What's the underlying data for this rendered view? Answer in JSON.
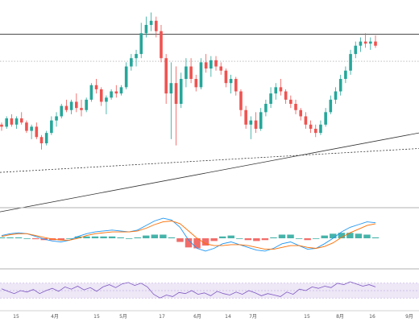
{
  "chart_data": [
    {
      "panel": "price",
      "type": "candlestick",
      "title": "",
      "ylim": [
        0,
        100
      ],
      "horizontal_levels": [
        {
          "name": "resistance",
          "y": 83.5,
          "style": "solid"
        },
        {
          "name": "upper-dotted",
          "y": 70.5,
          "style": "dotted"
        }
      ],
      "trendlines": [
        {
          "name": "rising-solid-trend",
          "y_start": -2,
          "y_end": 36,
          "style": "solid"
        },
        {
          "name": "rising-dotted-trend",
          "y_start": 17,
          "y_end": 28.5,
          "style": "dashed"
        }
      ],
      "candles": [
        {
          "o": 40,
          "h": 41,
          "l": 37,
          "c": 39
        },
        {
          "o": 39,
          "h": 44,
          "l": 38,
          "c": 43
        },
        {
          "o": 43,
          "h": 45,
          "l": 39,
          "c": 40
        },
        {
          "o": 40,
          "h": 44,
          "l": 38,
          "c": 43
        },
        {
          "o": 43,
          "h": 46,
          "l": 40,
          "c": 41
        },
        {
          "o": 41,
          "h": 42,
          "l": 36,
          "c": 37
        },
        {
          "o": 37,
          "h": 40,
          "l": 33,
          "c": 39
        },
        {
          "o": 39,
          "h": 41,
          "l": 33,
          "c": 34
        },
        {
          "o": 34,
          "h": 35,
          "l": 28,
          "c": 31
        },
        {
          "o": 31,
          "h": 37,
          "l": 30,
          "c": 36
        },
        {
          "o": 36,
          "h": 44,
          "l": 35,
          "c": 42
        },
        {
          "o": 42,
          "h": 46,
          "l": 39,
          "c": 44
        },
        {
          "o": 44,
          "h": 50,
          "l": 43,
          "c": 49
        },
        {
          "o": 49,
          "h": 52,
          "l": 46,
          "c": 47
        },
        {
          "o": 47,
          "h": 52,
          "l": 45,
          "c": 51
        },
        {
          "o": 51,
          "h": 55,
          "l": 46,
          "c": 48
        },
        {
          "o": 48,
          "h": 52,
          "l": 44,
          "c": 47
        },
        {
          "o": 47,
          "h": 53,
          "l": 46,
          "c": 52
        },
        {
          "o": 52,
          "h": 60,
          "l": 51,
          "c": 59
        },
        {
          "o": 59,
          "h": 62,
          "l": 55,
          "c": 57
        },
        {
          "o": 57,
          "h": 58,
          "l": 49,
          "c": 51
        },
        {
          "o": 51,
          "h": 54,
          "l": 45,
          "c": 53
        },
        {
          "o": 53,
          "h": 57,
          "l": 52,
          "c": 56
        },
        {
          "o": 56,
          "h": 59,
          "l": 53,
          "c": 55
        },
        {
          "o": 55,
          "h": 59,
          "l": 54,
          "c": 58
        },
        {
          "o": 58,
          "h": 70,
          "l": 57,
          "c": 68
        },
        {
          "o": 68,
          "h": 74,
          "l": 66,
          "c": 72
        },
        {
          "o": 72,
          "h": 76,
          "l": 68,
          "c": 74
        },
        {
          "o": 74,
          "h": 89,
          "l": 72,
          "c": 84
        },
        {
          "o": 84,
          "h": 92,
          "l": 82,
          "c": 88
        },
        {
          "o": 88,
          "h": 94,
          "l": 85,
          "c": 90
        },
        {
          "o": 90,
          "h": 92,
          "l": 82,
          "c": 85
        },
        {
          "o": 85,
          "h": 88,
          "l": 70,
          "c": 72
        },
        {
          "o": 72,
          "h": 74,
          "l": 50,
          "c": 55
        },
        {
          "o": 55,
          "h": 70,
          "l": 33,
          "c": 60
        },
        {
          "o": 60,
          "h": 68,
          "l": 30,
          "c": 50
        },
        {
          "o": 50,
          "h": 65,
          "l": 48,
          "c": 62
        },
        {
          "o": 62,
          "h": 72,
          "l": 58,
          "c": 68
        },
        {
          "o": 68,
          "h": 72,
          "l": 60,
          "c": 62
        },
        {
          "o": 62,
          "h": 64,
          "l": 56,
          "c": 58
        },
        {
          "o": 58,
          "h": 72,
          "l": 57,
          "c": 70
        },
        {
          "o": 70,
          "h": 74,
          "l": 65,
          "c": 67
        },
        {
          "o": 67,
          "h": 73,
          "l": 63,
          "c": 71
        },
        {
          "o": 71,
          "h": 73,
          "l": 66,
          "c": 68
        },
        {
          "o": 68,
          "h": 70,
          "l": 64,
          "c": 66
        },
        {
          "o": 66,
          "h": 67,
          "l": 58,
          "c": 60
        },
        {
          "o": 60,
          "h": 64,
          "l": 55,
          "c": 62
        },
        {
          "o": 62,
          "h": 63,
          "l": 54,
          "c": 56
        },
        {
          "o": 56,
          "h": 57,
          "l": 44,
          "c": 47
        },
        {
          "o": 47,
          "h": 49,
          "l": 38,
          "c": 40
        },
        {
          "o": 40,
          "h": 44,
          "l": 33,
          "c": 42
        },
        {
          "o": 42,
          "h": 46,
          "l": 36,
          "c": 38
        },
        {
          "o": 38,
          "h": 48,
          "l": 37,
          "c": 46
        },
        {
          "o": 46,
          "h": 52,
          "l": 44,
          "c": 50
        },
        {
          "o": 50,
          "h": 58,
          "l": 48,
          "c": 55
        },
        {
          "o": 55,
          "h": 60,
          "l": 52,
          "c": 58
        },
        {
          "o": 58,
          "h": 62,
          "l": 54,
          "c": 56
        },
        {
          "o": 56,
          "h": 57,
          "l": 50,
          "c": 52
        },
        {
          "o": 52,
          "h": 54,
          "l": 48,
          "c": 50
        },
        {
          "o": 50,
          "h": 52,
          "l": 45,
          "c": 47
        },
        {
          "o": 47,
          "h": 48,
          "l": 42,
          "c": 44
        },
        {
          "o": 44,
          "h": 46,
          "l": 38,
          "c": 40
        },
        {
          "o": 40,
          "h": 42,
          "l": 36,
          "c": 38
        },
        {
          "o": 38,
          "h": 40,
          "l": 34,
          "c": 36
        },
        {
          "o": 36,
          "h": 42,
          "l": 35,
          "c": 40
        },
        {
          "o": 40,
          "h": 48,
          "l": 39,
          "c": 46
        },
        {
          "o": 46,
          "h": 54,
          "l": 45,
          "c": 52
        },
        {
          "o": 52,
          "h": 58,
          "l": 50,
          "c": 56
        },
        {
          "o": 56,
          "h": 64,
          "l": 54,
          "c": 62
        },
        {
          "o": 62,
          "h": 68,
          "l": 60,
          "c": 66
        },
        {
          "o": 66,
          "h": 76,
          "l": 64,
          "c": 74
        },
        {
          "o": 74,
          "h": 80,
          "l": 72,
          "c": 78
        },
        {
          "o": 78,
          "h": 82,
          "l": 75,
          "c": 80
        },
        {
          "o": 80,
          "h": 84,
          "l": 77,
          "c": 79
        },
        {
          "o": 79,
          "h": 82,
          "l": 76,
          "c": 80
        },
        {
          "o": 80,
          "h": 83,
          "l": 77,
          "c": 78
        }
      ]
    },
    {
      "panel": "macd",
      "type": "histogram+line",
      "ylim": [
        -3,
        3
      ],
      "series": [
        {
          "role": "macd-line",
          "values": [
            0.3,
            0.5,
            0.6,
            0.5,
            0.2,
            -0.1,
            -0.3,
            -0.4,
            -0.2,
            0.2,
            0.5,
            0.7,
            0.8,
            0.9,
            0.8,
            0.7,
            0.9,
            1.4,
            1.9,
            2.2,
            2.0,
            1.2,
            -0.2,
            -1.1,
            -1.4,
            -1.1,
            -0.6,
            -0.4,
            -0.7,
            -1.0,
            -1.3,
            -1.4,
            -1.1,
            -0.6,
            -0.4,
            -0.8,
            -1.2,
            -1.1,
            -0.6,
            0.0,
            0.7,
            1.2,
            1.5,
            1.8,
            1.7
          ]
        },
        {
          "role": "signal-line",
          "values": [
            0.2,
            0.4,
            0.5,
            0.5,
            0.3,
            0.1,
            -0.1,
            -0.2,
            -0.2,
            0.0,
            0.3,
            0.5,
            0.6,
            0.7,
            0.7,
            0.7,
            0.8,
            1.1,
            1.5,
            1.8,
            1.9,
            1.6,
            0.8,
            0.0,
            -0.6,
            -0.8,
            -0.8,
            -0.7,
            -0.7,
            -0.8,
            -1.0,
            -1.2,
            -1.2,
            -1.0,
            -0.8,
            -0.8,
            -1.0,
            -1.1,
            -0.9,
            -0.5,
            0.1,
            0.6,
            1.0,
            1.4,
            1.6
          ]
        }
      ],
      "histogram": [
        0.1,
        0.1,
        0.1,
        0.0,
        -0.1,
        -0.2,
        -0.2,
        -0.2,
        0.0,
        0.2,
        0.2,
        0.2,
        0.2,
        0.2,
        0.1,
        0.0,
        0.1,
        0.3,
        0.4,
        0.4,
        0.1,
        -0.4,
        -1.0,
        -1.1,
        -0.8,
        -0.3,
        0.2,
        0.3,
        0.0,
        -0.2,
        -0.3,
        -0.2,
        0.1,
        0.4,
        0.4,
        0.0,
        -0.2,
        0.0,
        0.3,
        0.5,
        0.6,
        0.6,
        0.5,
        0.4,
        0.1
      ]
    },
    {
      "panel": "rsi",
      "type": "line",
      "ylim": [
        0,
        100
      ],
      "band": [
        30,
        70
      ],
      "values": [
        55,
        48,
        42,
        50,
        46,
        53,
        42,
        50,
        56,
        48,
        60,
        54,
        62,
        52,
        58,
        48,
        60,
        66,
        58,
        68,
        72,
        64,
        70,
        60,
        40,
        30,
        38,
        34,
        45,
        42,
        50,
        40,
        44,
        36,
        48,
        42,
        38,
        46,
        40,
        50,
        44,
        36,
        42,
        38,
        34,
        46,
        40,
        54,
        50,
        60,
        56,
        62,
        58,
        70,
        66,
        74,
        68,
        62,
        66,
        60
      ]
    }
  ],
  "x_axis": {
    "tick_labels": [
      "15",
      "4月",
      "15",
      "5月",
      "17",
      "6月",
      "14",
      "7月",
      "15",
      "8月",
      "16",
      "9月"
    ]
  },
  "colors": {
    "up": "#26a69a",
    "down": "#ef5350",
    "macd_line": "#2196f3",
    "signal_line": "#ff6d00",
    "rsi_line": "#7e57c2",
    "rsi_band": "#ede7f6"
  }
}
